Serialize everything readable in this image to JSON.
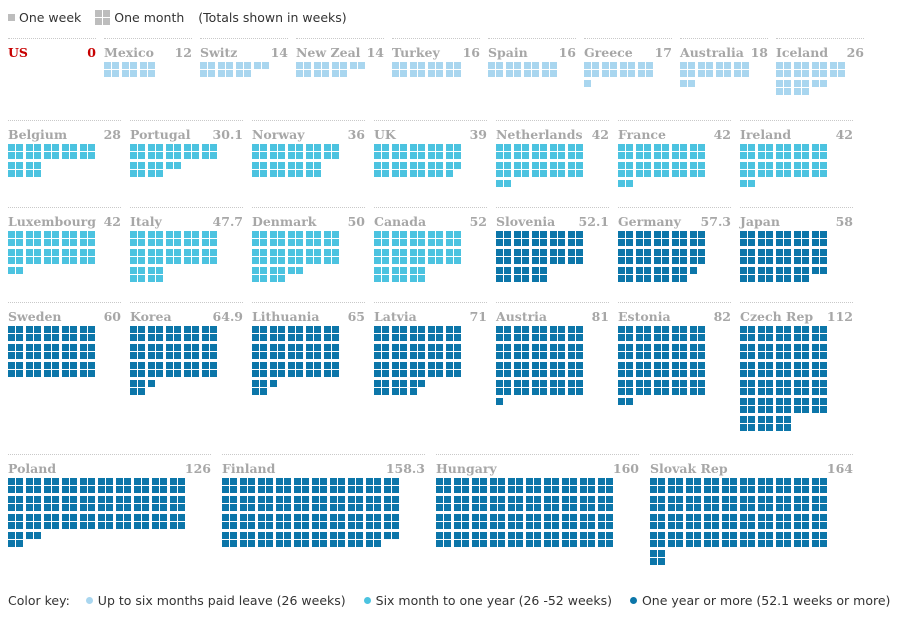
{
  "legend": {
    "one_week": "One week",
    "one_month": "One month",
    "note": "(Totals shown in weeks)",
    "week_color": "#bdbdbd"
  },
  "color_key": {
    "label": "Color key:",
    "items": [
      {
        "label": "Up to six months paid leave (26 weeks)",
        "color": "#a9d6ef"
      },
      {
        "label": "Six month to one year (26 -52 weeks)",
        "color": "#4cc3e0"
      },
      {
        "label": "One year or more (52.1 weeks or more)",
        "color": "#0c76a9"
      }
    ]
  },
  "chart_data": {
    "type": "waffle",
    "unit": "weeks",
    "colors": {
      "low": "#a9d6ef",
      "mid": "#4cc3e0",
      "high": "#0c76a9",
      "highlight": "#c70000"
    },
    "countries": [
      {
        "name": "US",
        "label": "0",
        "weeks": 0,
        "highlight": true
      },
      {
        "name": "Mexico",
        "label": "12",
        "weeks": 12
      },
      {
        "name": "Switz",
        "label": "14",
        "weeks": 14
      },
      {
        "name": "New Zeal",
        "label": "14",
        "weeks": 14
      },
      {
        "name": "Turkey",
        "label": "16",
        "weeks": 16
      },
      {
        "name": "Spain",
        "label": "16",
        "weeks": 16
      },
      {
        "name": "Greece",
        "label": "17",
        "weeks": 17
      },
      {
        "name": "Australia",
        "label": "18",
        "weeks": 18
      },
      {
        "name": "Iceland",
        "label": "26",
        "weeks": 26
      },
      {
        "name": "Belgium",
        "label": "28",
        "weeks": 28
      },
      {
        "name": "Portugal",
        "label": "30.1",
        "weeks": 30.1
      },
      {
        "name": "Norway",
        "label": "36",
        "weeks": 36
      },
      {
        "name": "UK",
        "label": "39",
        "weeks": 39
      },
      {
        "name": "Netherlands",
        "label": "42",
        "weeks": 42
      },
      {
        "name": "France",
        "label": "42",
        "weeks": 42
      },
      {
        "name": "Ireland",
        "label": "42",
        "weeks": 42
      },
      {
        "name": "Luxembourg",
        "label": "42",
        "weeks": 42
      },
      {
        "name": "Italy",
        "label": "47.7",
        "weeks": 47.7
      },
      {
        "name": "Denmark",
        "label": "50",
        "weeks": 50
      },
      {
        "name": "Canada",
        "label": "52",
        "weeks": 52
      },
      {
        "name": "Slovenia",
        "label": "52.1",
        "weeks": 52.1
      },
      {
        "name": "Germany",
        "label": "57.3",
        "weeks": 57.3
      },
      {
        "name": "Japan",
        "label": "58",
        "weeks": 58
      },
      {
        "name": "Sweden",
        "label": "60",
        "weeks": 60
      },
      {
        "name": "Korea",
        "label": "64.9",
        "weeks": 64.9
      },
      {
        "name": "Lithuania",
        "label": "65",
        "weeks": 65
      },
      {
        "name": "Latvia",
        "label": "71",
        "weeks": 71
      },
      {
        "name": "Austria",
        "label": "81",
        "weeks": 81
      },
      {
        "name": "Estonia",
        "label": "82",
        "weeks": 82
      },
      {
        "name": "Czech Rep",
        "label": "112",
        "weeks": 112
      },
      {
        "name": "Poland",
        "label": "126",
        "weeks": 126
      },
      {
        "name": "Finland",
        "label": "158.3",
        "weeks": 158.3
      },
      {
        "name": "Hungary",
        "label": "160",
        "weeks": 160
      },
      {
        "name": "Slovak Rep",
        "label": "164",
        "weeks": 164
      }
    ]
  }
}
